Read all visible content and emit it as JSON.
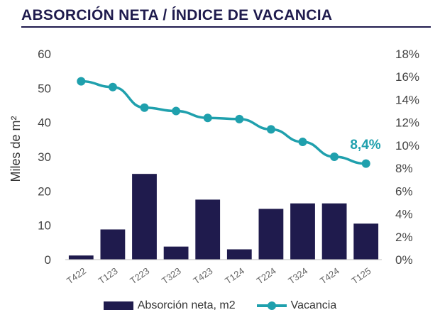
{
  "header": {
    "title": "ABSORCIÓN NETA / ÍNDICE DE VACANCIA"
  },
  "chart_data": {
    "type": "bar",
    "categories": [
      "T422",
      "T123",
      "T223",
      "T323",
      "T423",
      "T124",
      "T224",
      "T324",
      "T424",
      "T125"
    ],
    "series": [
      {
        "name": "Absorción neta, m2",
        "type": "bar",
        "axis": "left",
        "values": [
          1.2,
          8.8,
          25.0,
          3.8,
          17.5,
          3.0,
          14.8,
          16.4,
          16.4,
          10.5
        ]
      },
      {
        "name": "Vacancia",
        "type": "line",
        "axis": "right",
        "values": [
          15.6,
          15.1,
          13.3,
          13.0,
          12.4,
          12.3,
          11.4,
          10.3,
          9.0,
          8.4
        ]
      }
    ],
    "ylabel": "Miles de m²",
    "ylim": [
      0,
      60
    ],
    "yticks": [
      "0",
      "10",
      "20",
      "30",
      "40",
      "50",
      "60"
    ],
    "y2lim": [
      0,
      18
    ],
    "y2ticks": [
      "0%",
      "2%",
      "4%",
      "6%",
      "8%",
      "10%",
      "12%",
      "14%",
      "16%",
      "18%"
    ],
    "annotation": "8,4%",
    "legend_position": "bottom",
    "grid": false,
    "colors": {
      "bar": "#1f1b4d",
      "line": "#1fa0ad"
    }
  }
}
